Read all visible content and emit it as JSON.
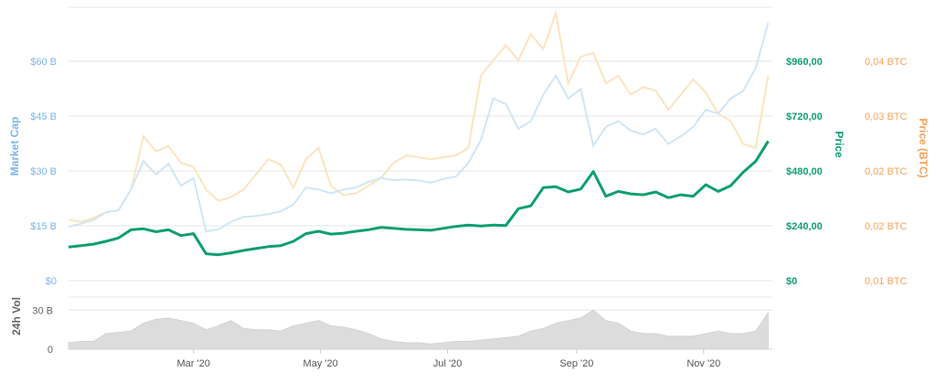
{
  "colors": {
    "market_cap": "#cfe6f5",
    "price": "#0e9f6e",
    "price_btc": "#fde3bf",
    "volume": "#dcdcdc",
    "grid": "#e6e6e6",
    "axis_mc": "#7cb5ec",
    "axis_price": "#0e9f6e",
    "axis_btc": "#f7a35c"
  },
  "chart_data": {
    "type": "line",
    "grid": true,
    "legend": "none",
    "main_panel": {
      "left_axis": {
        "title": "Market Cap",
        "ticks": [
          "$0",
          "$15 B",
          "$30 B",
          "$45 B",
          "$60 B"
        ],
        "ylim": [
          0,
          72
        ]
      },
      "right_axis_price": {
        "title": "Price",
        "ticks": [
          "$0",
          "$240,00",
          "$480,00",
          "$720,00",
          "$960,00"
        ],
        "ylim": [
          0,
          1140
        ]
      },
      "right_axis_btc": {
        "title": "Price (BTC)",
        "ticks": [
          "0,01 BTC",
          "0,02 BTC",
          "0,02 BTC",
          "0,03 BTC",
          "0,04 BTC"
        ]
      }
    },
    "volume_panel": {
      "title": "24h Vol",
      "ticks": [
        "0",
        "30 B"
      ],
      "ylim": [
        0,
        40
      ]
    },
    "x_axis": {
      "ticks": [
        "Mar '20",
        "May '20",
        "Jul '20",
        "Sep '20",
        "Nov '20"
      ],
      "tick_positions_day": [
        60,
        121,
        182,
        244,
        305
      ],
      "xlim_day": [
        0,
        338
      ]
    },
    "series": [
      {
        "key": "price",
        "x": [
          0,
          6,
          12,
          18,
          24,
          30,
          36,
          42,
          48,
          54,
          60,
          66,
          72,
          78,
          84,
          90,
          96,
          102,
          108,
          114,
          120,
          126,
          132,
          138,
          144,
          150,
          156,
          162,
          168,
          174,
          180,
          186,
          192,
          198,
          204,
          210,
          216,
          222,
          228,
          234,
          240,
          246,
          252,
          258,
          264,
          270,
          276,
          282,
          288,
          294,
          300,
          306,
          312,
          318,
          324,
          330,
          336
        ],
        "values": [
          140,
          146,
          152,
          164,
          178,
          212,
          216,
          204,
          212,
          188,
          196,
          112,
          108,
          116,
          126,
          134,
          142,
          146,
          164,
          196,
          206,
          194,
          198,
          206,
          212,
          222,
          218,
          214,
          212,
          210,
          218,
          226,
          232,
          228,
          232,
          230,
          300,
          312,
          388,
          392,
          370,
          382,
          455,
          352,
          372,
          362,
          358,
          370,
          346,
          358,
          352,
          400,
          372,
          396,
          452,
          498,
          582
        ]
      },
      {
        "key": "market_cap",
        "x": [
          0,
          6,
          12,
          18,
          24,
          30,
          36,
          42,
          48,
          54,
          60,
          66,
          72,
          78,
          84,
          90,
          96,
          102,
          108,
          114,
          120,
          126,
          132,
          138,
          144,
          150,
          156,
          162,
          168,
          174,
          180,
          186,
          192,
          198,
          204,
          210,
          216,
          222,
          228,
          234,
          240,
          246,
          252,
          258,
          264,
          270,
          276,
          282,
          288,
          294,
          300,
          306,
          312,
          318,
          324,
          330,
          336
        ],
        "values": [
          14.2,
          15.0,
          16.0,
          18.0,
          18.6,
          24.0,
          31.5,
          28.0,
          30.8,
          25.0,
          27.0,
          13.0,
          13.5,
          15.5,
          16.8,
          17.0,
          17.5,
          18.3,
          20.0,
          24.5,
          24.0,
          23.0,
          24.0,
          24.5,
          26.0,
          27.0,
          26.5,
          26.6,
          26.4,
          25.8,
          26.8,
          27.4,
          31.0,
          37.0,
          48.0,
          46.5,
          40.0,
          42.0,
          49.0,
          54.0,
          48.0,
          50.5,
          35.5,
          40.5,
          42.0,
          39.5,
          38.5,
          40.0,
          36.0,
          38.0,
          40.5,
          45.0,
          44.0,
          48.0,
          50.0,
          56.0,
          68.0
        ]
      },
      {
        "key": "price_btc",
        "x": [
          0,
          6,
          12,
          18,
          24,
          30,
          36,
          42,
          48,
          54,
          60,
          66,
          72,
          78,
          84,
          90,
          96,
          102,
          108,
          114,
          120,
          126,
          132,
          138,
          144,
          150,
          156,
          162,
          168,
          174,
          180,
          186,
          192,
          198,
          204,
          210,
          216,
          222,
          228,
          234,
          240,
          246,
          252,
          258,
          264,
          270,
          276,
          282,
          288,
          294,
          300,
          306,
          312,
          318,
          324,
          330,
          336
        ],
        "values": [
          16.0,
          15.5,
          16.5,
          18.0,
          18.5,
          24.0,
          38.0,
          34.0,
          35.5,
          31.0,
          30.0,
          24.0,
          21.0,
          22.0,
          24.0,
          28.0,
          32.0,
          30.5,
          24.5,
          32.0,
          35.0,
          25.0,
          22.5,
          23.0,
          25.0,
          27.0,
          31.0,
          33.0,
          32.5,
          32.0,
          32.5,
          33.0,
          35.0,
          54.0,
          58.0,
          62.0,
          58.0,
          65.0,
          61.0,
          70.5,
          52.0,
          59.0,
          60.0,
          52.0,
          54.0,
          49.0,
          51.0,
          50.0,
          45.0,
          49.0,
          53.0,
          49.5,
          44.0,
          42.0,
          36.0,
          35.0,
          54.0
        ]
      },
      {
        "key": "volume",
        "x": [
          0,
          6,
          12,
          18,
          24,
          30,
          36,
          42,
          48,
          54,
          60,
          66,
          72,
          78,
          84,
          90,
          96,
          102,
          108,
          114,
          120,
          126,
          132,
          138,
          144,
          150,
          156,
          162,
          168,
          174,
          180,
          186,
          192,
          198,
          204,
          210,
          216,
          222,
          228,
          234,
          240,
          246,
          252,
          258,
          264,
          270,
          276,
          282,
          288,
          294,
          300,
          306,
          312,
          318,
          324,
          330,
          336
        ],
        "values": [
          5,
          6,
          6,
          12,
          13,
          14,
          20,
          23,
          24,
          22,
          20,
          15,
          18,
          22,
          16,
          15,
          15,
          14,
          18,
          20,
          22,
          18,
          17,
          15,
          12,
          8,
          6,
          5,
          5,
          4,
          5,
          6,
          6,
          7,
          8,
          9,
          10,
          14,
          16,
          20,
          22,
          24,
          30,
          22,
          20,
          14,
          12,
          12,
          10,
          10,
          10,
          12,
          14,
          12,
          12,
          14,
          28
        ]
      }
    ]
  }
}
